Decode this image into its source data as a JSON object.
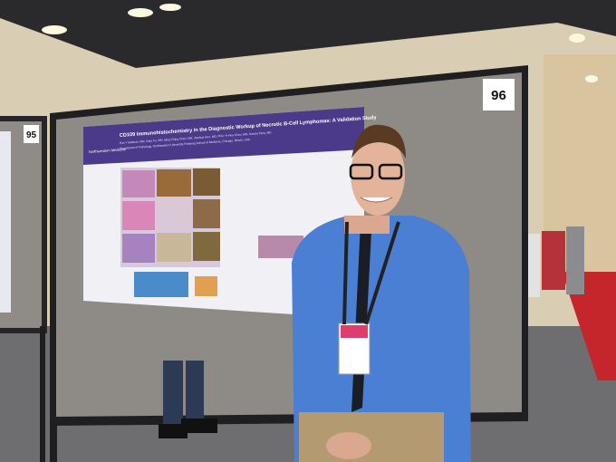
{
  "board_number": "96",
  "left_board_number": "95",
  "poster": {
    "title": "CD109 Immunohistochemistry in the Diagnostic Workup of Necrotic B-Cell Lymphomas: A Validation Study",
    "authors": "Erin Y Maiman, MD; Gary Fu, MD; Qing Ching Chen, MD; Jianhua Guo, MD, PhD; Yi-Hua Chen, MD; Hamza Tariq, MD",
    "affiliation": "Department of Pathology, Northwestern University Feinberg School of Medicine, Chicago, Illinois, USA",
    "logo": "Northwestern Medicine"
  }
}
